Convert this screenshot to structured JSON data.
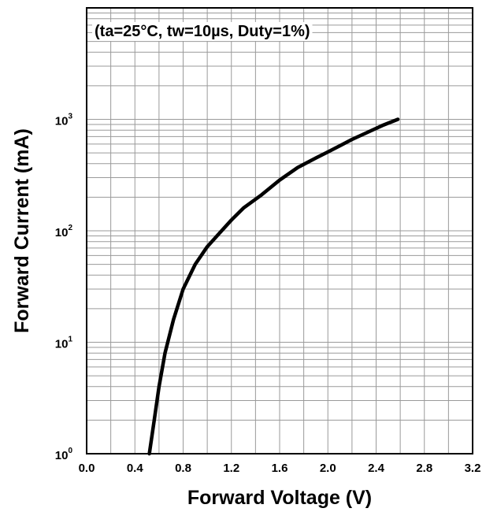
{
  "chart_data": {
    "type": "line",
    "annotation": "(ta=25°C, tw=10µs, Duty=1%)",
    "xlabel": "Forward Voltage (V)",
    "ylabel": "Forward Current (mA)",
    "xlim": [
      0.0,
      3.2
    ],
    "ylim": [
      1,
      10000
    ],
    "yscale": "log",
    "grid": true,
    "xticks": [
      "0.0",
      "0.4",
      "0.8",
      "1.2",
      "1.6",
      "2.0",
      "2.4",
      "2.8",
      "3.2"
    ],
    "yticks": [
      {
        "base": "10",
        "exp": "0"
      },
      {
        "base": "10",
        "exp": "1"
      },
      {
        "base": "10",
        "exp": "2"
      },
      {
        "base": "10",
        "exp": "3"
      }
    ],
    "series": [
      {
        "color": "#000000",
        "x": [
          0.52,
          0.56,
          0.6,
          0.65,
          0.72,
          0.8,
          0.9,
          1.0,
          1.1,
          1.2,
          1.3,
          1.45,
          1.6,
          1.75,
          1.9,
          2.0,
          2.1,
          2.2,
          2.3,
          2.45,
          2.58
        ],
        "y": [
          1,
          2,
          4,
          8,
          16,
          30,
          50,
          72,
          95,
          125,
          160,
          210,
          285,
          370,
          450,
          510,
          580,
          660,
          740,
          880,
          1000
        ]
      }
    ]
  }
}
